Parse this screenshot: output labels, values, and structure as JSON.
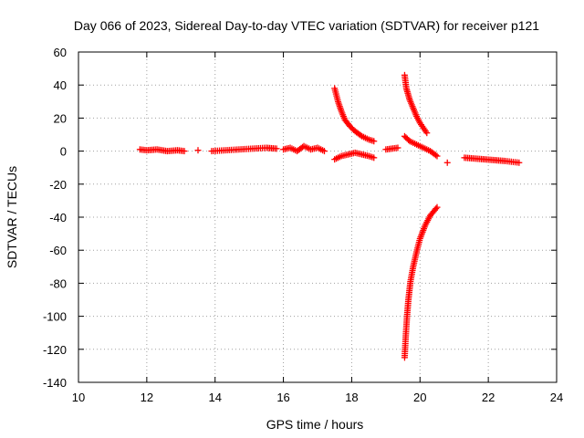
{
  "chart_data": {
    "type": "scatter",
    "title": "Day 066 of 2023, Sidereal Day-to-day VTEC variation (SDTVAR) for receiver p121",
    "xlabel": "GPS time / hours",
    "ylabel": "SDTVAR / TECUs",
    "xlim": [
      10,
      24
    ],
    "ylim": [
      -140,
      60
    ],
    "xticks": [
      10,
      12,
      14,
      16,
      18,
      20,
      22,
      24
    ],
    "yticks": [
      60,
      40,
      20,
      0,
      -20,
      -40,
      -60,
      -80,
      -100,
      -120,
      -140
    ],
    "grid": true,
    "legend": "none",
    "marker": "plus",
    "series": [
      {
        "name": "SDTVAR",
        "color": "#ff0000",
        "segments": [
          {
            "x": [
              11.8,
              12.0,
              12.3,
              12.6,
              12.9,
              13.1
            ],
            "y": [
              1,
              0.5,
              1,
              0,
              0.5,
              0
            ]
          },
          {
            "x": [
              13.5
            ],
            "y": [
              0.5
            ]
          },
          {
            "x": [
              13.9,
              14.3,
              14.7,
              15.1,
              15.5,
              15.8
            ],
            "y": [
              0,
              0.5,
              1,
              1.5,
              2,
              1.5
            ]
          },
          {
            "x": [
              16.0,
              16.2,
              16.4,
              16.6,
              16.8,
              17.0,
              17.2
            ],
            "y": [
              1,
              2,
              0,
              3,
              1,
              2,
              0
            ]
          },
          {
            "x": [
              17.5,
              17.6,
              17.7,
              17.8,
              17.95,
              18.1,
              18.3,
              18.5,
              18.65
            ],
            "y": [
              38,
              30,
              24,
              19,
              15,
              12,
              9,
              7,
              6
            ]
          },
          {
            "x": [
              17.5,
              17.7,
              17.9,
              18.1,
              18.3,
              18.5,
              18.65
            ],
            "y": [
              -5,
              -3,
              -2,
              -1,
              -2,
              -3,
              -4
            ]
          },
          {
            "x": [
              19.0,
              19.35
            ],
            "y": [
              1,
              2
            ]
          },
          {
            "x": [
              19.55,
              19.6,
              19.7,
              19.8,
              19.9,
              20.0,
              20.1,
              20.2
            ],
            "y": [
              46,
              38,
              31,
              26,
              21,
              17,
              14,
              11
            ]
          },
          {
            "x": [
              19.55,
              19.7,
              19.9,
              20.1,
              20.3,
              20.5
            ],
            "y": [
              9,
              6,
              4,
              2,
              0,
              -3
            ]
          },
          {
            "x": [
              19.55,
              19.58,
              19.62,
              19.66,
              19.72,
              19.8,
              19.9,
              20.0,
              20.15,
              20.3,
              20.5
            ],
            "y": [
              -125,
              -113,
              -100,
              -90,
              -79,
              -70,
              -61,
              -53,
              -45,
              -39,
              -34
            ]
          },
          {
            "x": [
              20.8
            ],
            "y": [
              -7
            ]
          },
          {
            "x": [
              21.3,
              21.6,
              21.9,
              22.2,
              22.5,
              22.9
            ],
            "y": [
              -4,
              -4.5,
              -5,
              -5.5,
              -6,
              -7
            ]
          }
        ]
      }
    ]
  }
}
